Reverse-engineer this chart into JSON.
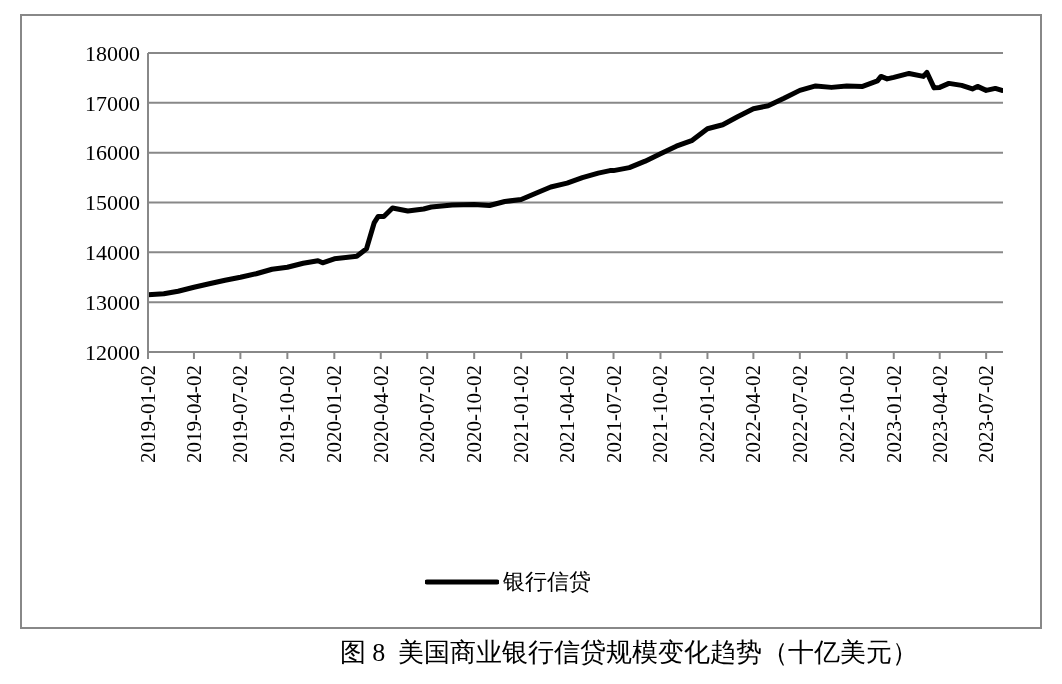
{
  "chart_data": {
    "type": "line",
    "x": [
      "2019-01-02",
      "2019-02-02",
      "2019-03-02",
      "2019-04-02",
      "2019-05-02",
      "2019-06-02",
      "2019-07-02",
      "2019-08-02",
      "2019-09-02",
      "2019-10-02",
      "2019-11-02",
      "2019-12-01",
      "2019-12-10",
      "2020-01-02",
      "2020-02-15",
      "2020-03-05",
      "2020-03-20",
      "2020-03-28",
      "2020-04-08",
      "2020-04-25",
      "2020-05-25",
      "2020-06-25",
      "2020-07-10",
      "2020-08-20",
      "2020-10-02",
      "2020-11-01",
      "2020-12-01",
      "2021-01-02",
      "2021-02-01",
      "2021-03-01",
      "2021-04-02",
      "2021-05-02",
      "2021-06-02",
      "2021-06-25",
      "2021-07-02",
      "2021-08-02",
      "2021-09-02",
      "2021-10-02",
      "2021-11-02",
      "2021-12-02",
      "2022-01-02",
      "2022-02-01",
      "2022-03-02",
      "2022-04-02",
      "2022-05-01",
      "2022-06-01",
      "2022-07-02",
      "2022-08-02",
      "2022-09-02",
      "2022-10-02",
      "2022-11-02",
      "2022-12-01",
      "2022-12-08",
      "2022-12-20",
      "2023-01-02",
      "2023-02-01",
      "2023-03-01",
      "2023-03-08",
      "2023-03-22",
      "2023-04-02",
      "2023-04-20",
      "2023-05-15",
      "2023-06-05",
      "2023-06-15",
      "2023-07-02",
      "2023-07-20",
      "2023-08-02"
    ],
    "series": [
      {
        "name": "银行信贷",
        "color": "#000000",
        "values": [
          13150,
          13170,
          13220,
          13300,
          13370,
          13440,
          13500,
          13570,
          13660,
          13700,
          13780,
          13830,
          13790,
          13870,
          13920,
          14070,
          14590,
          14720,
          14720,
          14890,
          14830,
          14870,
          14910,
          14950,
          14960,
          14940,
          15020,
          15060,
          15190,
          15310,
          15390,
          15500,
          15590,
          15640,
          15640,
          15700,
          15830,
          15980,
          16130,
          16240,
          16480,
          16560,
          16720,
          16880,
          16940,
          17090,
          17250,
          17340,
          17310,
          17340,
          17330,
          17440,
          17530,
          17480,
          17510,
          17590,
          17530,
          17610,
          17300,
          17310,
          17390,
          17350,
          17280,
          17330,
          17250,
          17290,
          17250
        ]
      }
    ],
    "xlim": [
      "2019-01-02",
      "2023-08-04"
    ],
    "xticks": [
      "2019-01-02",
      "2019-04-02",
      "2019-07-02",
      "2019-10-02",
      "2020-01-02",
      "2020-04-02",
      "2020-07-02",
      "2020-10-02",
      "2021-01-02",
      "2021-04-02",
      "2021-07-02",
      "2021-10-02",
      "2022-01-02",
      "2022-04-02",
      "2022-07-02",
      "2022-10-02",
      "2023-01-02",
      "2023-04-02",
      "2023-07-02"
    ],
    "ylim": [
      12000,
      18000
    ],
    "yticks": [
      12000,
      13000,
      14000,
      15000,
      16000,
      17000,
      18000
    ],
    "grid": "y",
    "legend": "bottom",
    "marker": "none",
    "line_style": "solid",
    "annotations": [
      "图 8  美国商业银行信贷规模变化趋势（十亿美元）"
    ]
  }
}
